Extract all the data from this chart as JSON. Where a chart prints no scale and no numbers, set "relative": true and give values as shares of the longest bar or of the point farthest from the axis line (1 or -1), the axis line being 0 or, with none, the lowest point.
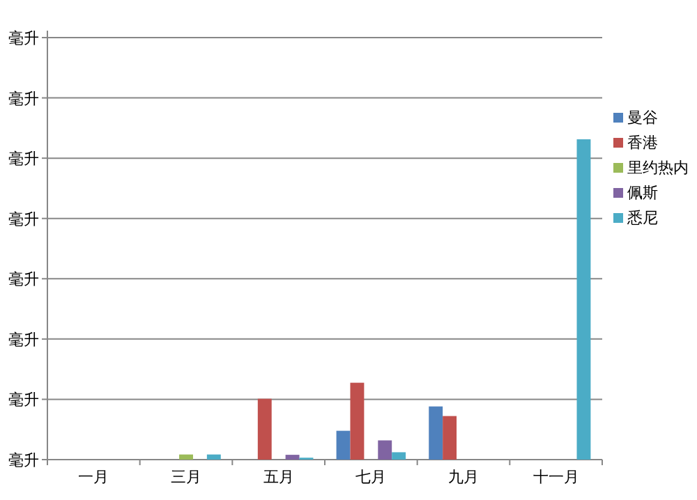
{
  "chart_data": {
    "type": "bar",
    "categories": [
      "一月",
      "三月",
      "五月",
      "七月",
      "九月",
      "十一月"
    ],
    "series": [
      {
        "name": "曼谷",
        "color": "#4f81bd",
        "values": [
          0,
          0,
          0,
          0.09,
          0.166,
          0
        ]
      },
      {
        "name": "香港",
        "color": "#c0504d",
        "values": [
          0,
          0,
          0.19,
          0.24,
          0.136,
          0
        ]
      },
      {
        "name": "里约热内",
        "color": "#9bbb59",
        "values": [
          0,
          0.016,
          0,
          0,
          0,
          0
        ]
      },
      {
        "name": "佩斯",
        "color": "#8064a2",
        "values": [
          0,
          0,
          0.015,
          0.06,
          0,
          0
        ]
      },
      {
        "name": "悉尼",
        "color": "#4bacc6",
        "values": [
          0,
          0.016,
          0.006,
          0.023,
          0,
          1
        ]
      }
    ],
    "relative": true,
    "annotations": [
      "毫升",
      "毫升",
      "毫升",
      "毫升",
      "毫升",
      "毫升",
      "毫升",
      "毫升"
    ],
    "grid": "y",
    "legend": "right"
  }
}
